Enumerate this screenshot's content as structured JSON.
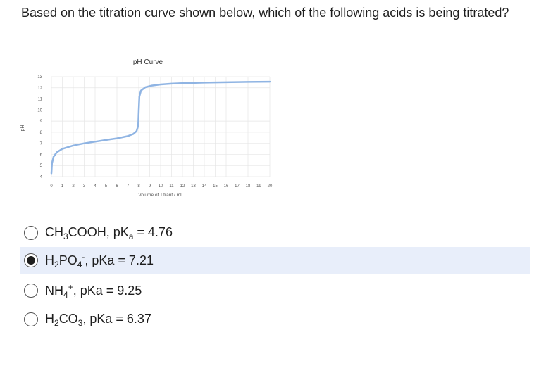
{
  "question": "Based on the titration curve shown below, which of the following acids is being titrated?",
  "chart_data": {
    "type": "line",
    "title": "pH Curve",
    "xlabel": "Volume of Titrant / mL",
    "ylabel": "pH",
    "xlim": [
      0,
      20
    ],
    "ylim": [
      4,
      13
    ],
    "xticks": [
      0,
      1,
      2,
      3,
      4,
      5,
      6,
      7,
      8,
      9,
      10,
      11,
      12,
      13,
      14,
      15,
      16,
      17,
      18,
      19,
      20
    ],
    "yticks": [
      4,
      5,
      6,
      7,
      8,
      9,
      10,
      11,
      12,
      13
    ],
    "grid": true,
    "line_color": "#8fb4e3",
    "x": [
      0,
      0.05,
      0.2,
      0.5,
      1,
      2,
      3,
      4,
      5,
      6,
      7,
      7.5,
      7.8,
      7.95,
      8.0,
      8.05,
      8.2,
      8.6,
      9.2,
      10,
      11,
      12,
      14,
      16,
      18,
      20
    ],
    "y": [
      4.3,
      5.2,
      5.8,
      6.2,
      6.5,
      6.8,
      7.0,
      7.15,
      7.3,
      7.45,
      7.65,
      7.85,
      8.1,
      8.6,
      10.0,
      11.2,
      11.75,
      12.05,
      12.2,
      12.3,
      12.37,
      12.42,
      12.47,
      12.5,
      12.53,
      12.55
    ]
  },
  "options": [
    {
      "parts": [
        [
          "t",
          "CH"
        ],
        [
          "sub",
          "3"
        ],
        [
          "t",
          "COOH, pK"
        ],
        [
          "sub",
          "a"
        ],
        [
          "t",
          " = 4.76"
        ]
      ],
      "selected": false
    },
    {
      "parts": [
        [
          "t",
          "H"
        ],
        [
          "sub",
          "2"
        ],
        [
          "t",
          "PO"
        ],
        [
          "sub",
          "4"
        ],
        [
          "sup",
          "-"
        ],
        [
          "t",
          ", pKa  = 7.21"
        ]
      ],
      "selected": true
    },
    {
      "parts": [
        [
          "t",
          "NH"
        ],
        [
          "sub",
          "4"
        ],
        [
          "sup",
          "+"
        ],
        [
          "t",
          ", pKa = 9.25"
        ]
      ],
      "selected": false
    },
    {
      "parts": [
        [
          "t",
          "H"
        ],
        [
          "sub",
          "2"
        ],
        [
          "t",
          "CO"
        ],
        [
          "sub",
          "3"
        ],
        [
          "t",
          ", pKa = 6.37"
        ]
      ],
      "selected": false
    }
  ]
}
